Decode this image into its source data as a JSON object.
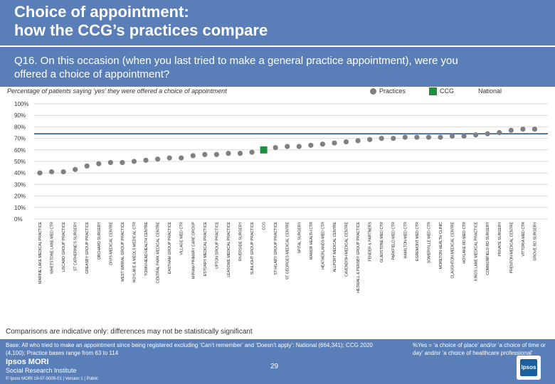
{
  "header": {
    "title": "Choice of appointment:\nhow the CCG’s practices compare",
    "question": "Q16. On this occasion (when you last tried to make a general practice appointment), were you\noffered a choice of appointment?"
  },
  "colors": {
    "header_bg": "#5a7fb8",
    "practice": "#808080",
    "ccg": "#1a8f3c",
    "national": "#1f4e8c"
  },
  "legend": {
    "practices": "Practices",
    "ccg": "CCG",
    "national": "National"
  },
  "note": "Comparisons are indicative only: differences may not be statistically significant",
  "footer": {
    "base": "Base: All who tried to make an appointment since being registered excluding ‘Can’t remember’ and ‘Doesn’t apply’: National (664,341); CCG 2020 (4,100); Practice bases range from 63 to 114",
    "definition": "%Yes = ‘a choice of place’ and/or ‘a choice of time or day’ and/or ‘a choice of healthcare professional’",
    "page_number": "29",
    "logo_line1": "Ipsos MORI",
    "logo_line2": "Social Research Institute",
    "copyright": "© Ipsos MORI    19-07-0009-01 | Version 1 | Public",
    "badge": "Ipsos"
  },
  "chart_data": {
    "type": "scatter",
    "title": "Percentage of patients saying ‘yes’ they were offered a choice of appointment",
    "ylim": [
      0,
      100
    ],
    "yticks": [
      "0%",
      "10%",
      "20%",
      "30%",
      "40%",
      "50%",
      "60%",
      "70%",
      "80%",
      "90%",
      "100%"
    ],
    "national_value": 74,
    "categories": [
      "MARINE LAKE MEDICAL PRACTICE",
      "WHETSTONE LANE MED CTR",
      "LISCARD GROUP PRACTICE",
      "ST CATHERINE'S SURGERY",
      "GREASBY GROUP PRACTICE",
      "ORCHARD SURGERY",
      "DIVIS MEDICAL CENTRE",
      "WEST WIRRAL GROUP PRACTICE",
      "HOYLAKE & MEOLS MEDICAL CTR",
      "TOWN HEAD HEALTH CENTRE",
      "CENTRAL PARK MEDICAL CENTRE",
      "EASTHAM GROUP PRACTICE",
      "VILLAGE MED CTR",
      "MIRIAM PRIMARY CARE GROUP",
      "ESTUARY MEDICAL PRACTICE",
      "UPTON GROUP PRACTICE",
      "LEASOWE MEDICAL PRACTICE",
      "RIVERSIDE SURGERY",
      "SUNLIGHT GROUP PRACTICE",
      "CCG",
      "ST HILARY GROUP PRACTICE",
      "ST GEORGES MEDICAL CENTRE",
      "SPITAL SURGERY",
      "MANOR HEALTH CTR",
      "HEATHERLANDS MED CTR",
      "ALLPORT MEDICAL CENTRE",
      "CAVENDISH MEDICAL CENTRE",
      "HESWALL & PENSBY GROUP PRACTICE",
      "FENDER & PARTNERS",
      "GLADSTONE MED CTR",
      "PARKFIELD MED CTR",
      "HAMILTON MED CTR",
      "EGREMONT MED CTR",
      "SOMERVILLE MED CTR",
      "MORETON HEALTH CLINIC",
      "CLAUGHTON MEDICAL CENTRE",
      "HOYLAKE RD MED CTR",
      "KINGS LANE MEDICAL PRACTICE",
      "COMMONFIELD RD SURGERY",
      "PRIVATE SURGERY",
      "PRENTON MEDICAL CENTRE",
      "VITTORIA MED CTR",
      "GROVE RD SURGERY"
    ],
    "values": [
      40,
      41,
      41,
      43,
      46,
      48,
      49,
      49,
      50,
      51,
      52,
      53,
      53,
      55,
      56,
      56,
      57,
      57,
      58,
      60,
      62,
      63,
      63,
      64,
      65,
      66,
      67,
      68,
      69,
      70,
      70,
      71,
      71,
      71,
      71,
      72,
      72,
      73,
      74,
      75,
      77,
      78,
      78
    ],
    "ccg_index": 19
  }
}
